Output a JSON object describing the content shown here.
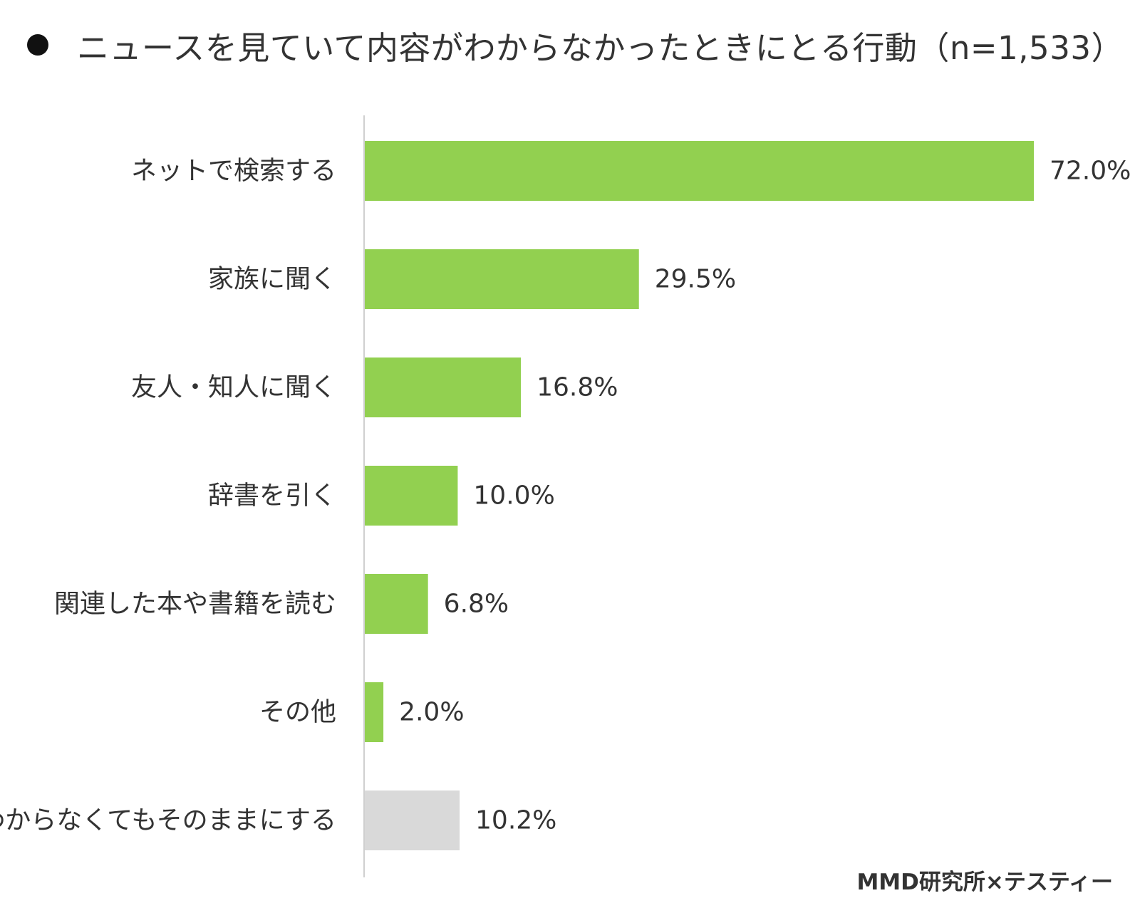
{
  "title": "ニュースを見ていて内容がわからなかったときにとる行動（n=1,533）",
  "source": "MMD研究所×テスティー",
  "chart_data": {
    "type": "bar",
    "orientation": "horizontal",
    "title": "ニュースを見ていて内容がわからなかったときにとる行動（n=1,533）",
    "xlabel": "",
    "ylabel": "",
    "xlim": [
      0,
      80
    ],
    "grid": false,
    "unit": "%",
    "categories": [
      "ネットで検索する",
      "家族に聞く",
      "友人・知人に聞く",
      "辞書を引く",
      "関連した本や書籍を読む",
      "その他",
      "わからなくてもそのままにする"
    ],
    "values": [
      72.0,
      29.5,
      16.8,
      10.0,
      6.8,
      2.0,
      10.2
    ],
    "value_labels": [
      "72.0%",
      "29.5%",
      "16.8%",
      "10.0%",
      "6.8%",
      "2.0%",
      "10.2%"
    ],
    "colors": [
      "#92d050",
      "#92d050",
      "#92d050",
      "#92d050",
      "#92d050",
      "#92d050",
      "#d9d9d9"
    ],
    "axis_color": "#d0d0d0"
  }
}
